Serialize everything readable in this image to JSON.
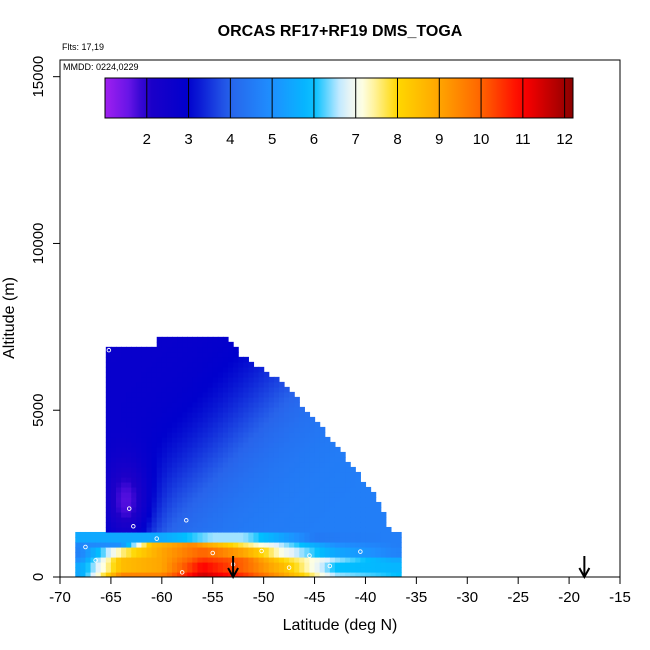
{
  "chart_data": {
    "type": "heatmap",
    "title": "ORCAS RF17+RF19 DMS_TOGA",
    "flights_label": "Flts: 17,19",
    "dates_label": "MMDD: 0224,0229",
    "xlabel": "Latitude (deg N)",
    "ylabel": "Altitude (m)",
    "xlim": [
      -70,
      -15
    ],
    "ylim": [
      0,
      15500
    ],
    "x_ticks": [
      "-70",
      "-65",
      "-60",
      "-55",
      "-50",
      "-45",
      "-40",
      "-35",
      "-30",
      "-25",
      "-20",
      "-15"
    ],
    "y_ticks": [
      "0",
      "5000",
      "10000",
      "15000"
    ],
    "colorbar": {
      "range": [
        1,
        12.2
      ],
      "ticks": [
        "2",
        "3",
        "4",
        "5",
        "6",
        "7",
        "8",
        "9",
        "10",
        "11",
        "12"
      ],
      "placement": "top"
    },
    "upper_field": {
      "description_levels": "values decreasing north-to-south aloft",
      "top_boundary": [
        {
          "lat": -65.5,
          "alt": 6900
        },
        {
          "lat": -60.5,
          "alt": 6900
        },
        {
          "lat": -60.5,
          "alt": 7200
        },
        {
          "lat": -53.5,
          "alt": 7200
        },
        {
          "lat": -52.5,
          "alt": 6700
        },
        {
          "lat": -48,
          "alt": 5800
        },
        {
          "lat": -43,
          "alt": 4000
        },
        {
          "lat": -39,
          "alt": 2400
        },
        {
          "lat": -36.5,
          "alt": 700
        }
      ],
      "low_value_core": {
        "lat": -63.5,
        "alt": 2300,
        "value": 1.6
      },
      "south_value": 2.7,
      "north_value": 4.6
    },
    "boundary_layer_bands": [
      {
        "alt_top": 1400,
        "alt_bottom": 1100,
        "values": [
          [
            -68,
            5.5
          ],
          [
            -60,
            5.5
          ],
          [
            -55,
            6.5
          ],
          [
            -52,
            6.5
          ],
          [
            -45,
            4.5
          ],
          [
            -37,
            4.6
          ]
        ]
      },
      {
        "alt_top": 1100,
        "alt_bottom": 850,
        "values": [
          [
            -68,
            4.8
          ],
          [
            -64,
            5.0
          ],
          [
            -61,
            8.5
          ],
          [
            -57,
            9.5
          ],
          [
            -53,
            8.0
          ],
          [
            -48,
            6.5
          ],
          [
            -43,
            5.0
          ],
          [
            -37,
            4.6
          ]
        ]
      },
      {
        "alt_top": 850,
        "alt_bottom": 600,
        "values": [
          [
            -68,
            4.7
          ],
          [
            -64,
            7.5
          ],
          [
            -60,
            9.0
          ],
          [
            -56,
            10.0
          ],
          [
            -52,
            9.0
          ],
          [
            -48,
            7.0
          ],
          [
            -43,
            5.5
          ],
          [
            -37,
            4.7
          ]
        ]
      },
      {
        "alt_top": 600,
        "alt_bottom": 400,
        "values": [
          [
            -68,
            5.0
          ],
          [
            -64,
            8.5
          ],
          [
            -60,
            9.0
          ],
          [
            -56,
            10.5
          ],
          [
            -52,
            10.0
          ],
          [
            -48,
            8.0
          ],
          [
            -43,
            6.5
          ],
          [
            -37,
            5.5
          ]
        ]
      },
      {
        "alt_top": 400,
        "alt_bottom": 200,
        "values": [
          [
            -68,
            5.5
          ],
          [
            -64,
            8.5
          ],
          [
            -60,
            9.0
          ],
          [
            -56,
            11.0
          ],
          [
            -52,
            10.0
          ],
          [
            -48,
            8.5
          ],
          [
            -43,
            6.0
          ],
          [
            -37,
            5.8
          ]
        ]
      },
      {
        "alt_top": 200,
        "alt_bottom": 0,
        "values": [
          [
            -68,
            5.5
          ],
          [
            -64,
            9.5
          ],
          [
            -60,
            9.5
          ],
          [
            -56,
            11.5
          ],
          [
            -52,
            10.5
          ],
          [
            -48,
            9.0
          ],
          [
            -43,
            6.5
          ],
          [
            -37,
            6.0
          ]
        ]
      }
    ],
    "sample_points": [
      {
        "lat": -65.2,
        "alt": 6800
      },
      {
        "lat": -63.2,
        "alt": 2050
      },
      {
        "lat": -62.8,
        "alt": 1520
      },
      {
        "lat": -57.6,
        "alt": 1700
      },
      {
        "lat": -60.5,
        "alt": 1150
      },
      {
        "lat": -55.0,
        "alt": 720
      },
      {
        "lat": -50.2,
        "alt": 780
      },
      {
        "lat": -45.5,
        "alt": 640
      },
      {
        "lat": -40.5,
        "alt": 760
      },
      {
        "lat": -67.5,
        "alt": 900
      },
      {
        "lat": -66.5,
        "alt": 500
      },
      {
        "lat": -53.0,
        "alt": 380
      },
      {
        "lat": -47.5,
        "alt": 280
      },
      {
        "lat": -43.5,
        "alt": 330
      },
      {
        "lat": -58.0,
        "alt": 140
      }
    ],
    "arrows": [
      {
        "lat": -53
      },
      {
        "lat": -18.5
      }
    ]
  }
}
